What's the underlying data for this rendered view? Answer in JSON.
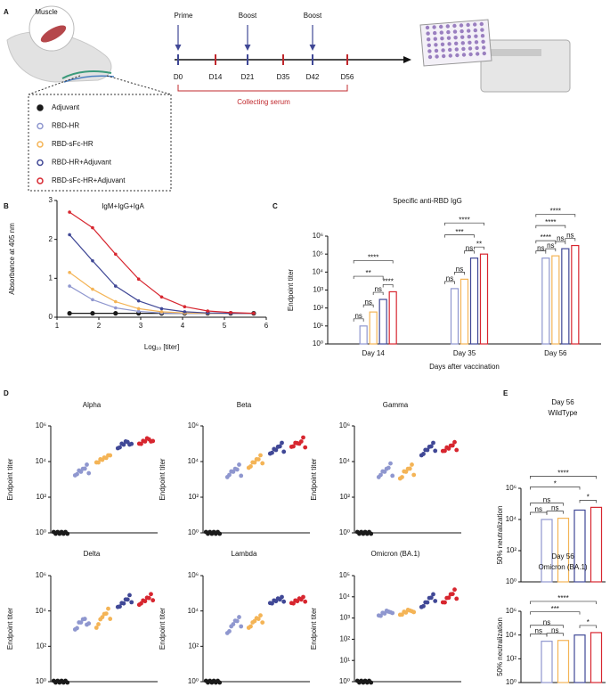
{
  "diagram": {
    "panel": "A",
    "muscle": "Muscle",
    "doses": [
      "Prime",
      "Boost",
      "Boost"
    ],
    "days": [
      "D0",
      "D14",
      "D21",
      "D35",
      "D42",
      "D56"
    ],
    "serum": "Collecting serum",
    "legend": [
      {
        "name": "Adjuvant",
        "color": "#1a1a1a"
      },
      {
        "name": "RBD-HR",
        "color": "#8f97cf"
      },
      {
        "name": "RBD-sFc-HR",
        "color": "#f4b456"
      },
      {
        "name": "RBD-HR+Adjuvant",
        "color": "#404896"
      },
      {
        "name": "RBD-sFc-HR+Adjuvant",
        "color": "#d7262f"
      }
    ]
  },
  "chart_data": [
    {
      "type": "line",
      "panel": "B",
      "title": "IgM+IgG+IgA",
      "ylabel": "Absorbance at 405 nm",
      "xlabel": "Log₁₀ [titer]",
      "x": [
        1.3,
        1.85,
        2.4,
        2.95,
        3.5,
        4.05,
        4.6,
        5.15,
        5.7
      ],
      "xlim": [
        1,
        6
      ],
      "xticks": [
        1,
        2,
        3,
        4,
        5,
        6
      ],
      "ylim": [
        0,
        3
      ],
      "yticks": [
        0,
        1,
        2,
        3
      ],
      "series": [
        {
          "color": "#1a1a1a",
          "values": [
            0.1,
            0.1,
            0.1,
            0.1,
            0.1,
            0.1,
            0.1,
            0.1,
            0.1
          ]
        },
        {
          "color": "#8f97cf",
          "values": [
            0.8,
            0.45,
            0.24,
            0.15,
            0.11,
            0.1,
            0.1,
            0.1,
            0.1
          ]
        },
        {
          "color": "#f4b456",
          "values": [
            1.15,
            0.72,
            0.4,
            0.22,
            0.14,
            0.11,
            0.1,
            0.1,
            0.1
          ]
        },
        {
          "color": "#404896",
          "values": [
            2.12,
            1.45,
            0.8,
            0.42,
            0.22,
            0.14,
            0.11,
            0.1,
            0.1
          ]
        },
        {
          "color": "#d7262f",
          "values": [
            2.7,
            2.3,
            1.62,
            0.98,
            0.52,
            0.27,
            0.16,
            0.12,
            0.1
          ]
        }
      ]
    },
    {
      "type": "bar",
      "panel": "C",
      "title": "Specific anti-RBD IgG",
      "ylabel": "Endpoint titer",
      "xlabel": "Days after vaccination",
      "log_y": true,
      "categories": [
        "Day 14",
        "Day 35",
        "Day 56"
      ],
      "ylim": [
        1,
        1000000
      ],
      "yticks": [
        {
          "value": 1,
          "label": "10⁰"
        },
        {
          "value": 10,
          "label": "10¹"
        },
        {
          "value": 100,
          "label": "10²"
        },
        {
          "value": 1000,
          "label": "10³"
        },
        {
          "value": 10000,
          "label": "10⁴"
        },
        {
          "value": 100000,
          "label": "10⁵"
        },
        {
          "value": 1000000,
          "label": "10⁶"
        }
      ],
      "series": [
        {
          "color": "#1a1a1a",
          "values": [
            1,
            1,
            1
          ]
        },
        {
          "color": "#8f97cf",
          "values": [
            10,
            1200,
            60000
          ]
        },
        {
          "color": "#f4b456",
          "values": [
            60,
            4000,
            80000
          ]
        },
        {
          "color": "#404896",
          "values": [
            300,
            60000,
            200000
          ]
        },
        {
          "color": "#d7262f",
          "values": [
            800,
            100000,
            300000
          ]
        }
      ],
      "comparisons": [
        {
          "category": 0,
          "from": 0,
          "to": 1,
          "label": "ns"
        },
        {
          "category": 0,
          "from": 1,
          "to": 2,
          "label": "ns"
        },
        {
          "category": 0,
          "from": 2,
          "to": 3,
          "label": "ns"
        },
        {
          "category": 0,
          "from": 3,
          "to": 4,
          "label": "****"
        },
        {
          "category": 0,
          "from": 0,
          "to": 3,
          "label": "**"
        },
        {
          "category": 0,
          "from": 0,
          "to": 4,
          "label": "****"
        },
        {
          "category": 1,
          "from": 0,
          "to": 1,
          "label": "ns"
        },
        {
          "category": 1,
          "from": 1,
          "to": 2,
          "label": "ns"
        },
        {
          "category": 1,
          "from": 2,
          "to": 3,
          "label": "ns"
        },
        {
          "category": 1,
          "from": 3,
          "to": 4,
          "label": "**"
        },
        {
          "category": 1,
          "from": 0,
          "to": 3,
          "label": "***"
        },
        {
          "category": 1,
          "from": 0,
          "to": 4,
          "label": "****"
        },
        {
          "category": 2,
          "from": 0,
          "to": 1,
          "label": "ns"
        },
        {
          "category": 2,
          "from": 1,
          "to": 2,
          "label": "ns"
        },
        {
          "category": 2,
          "from": 2,
          "to": 3,
          "label": "ns"
        },
        {
          "category": 2,
          "from": 3,
          "to": 4,
          "label": "ns"
        },
        {
          "category": 2,
          "from": 0,
          "to": 2,
          "label": "****"
        },
        {
          "category": 2,
          "from": 0,
          "to": 3,
          "label": "****"
        },
        {
          "category": 2,
          "from": 0,
          "to": 4,
          "label": "****"
        }
      ]
    },
    {
      "type": "scatter",
      "panel": "D",
      "title": "Alpha",
      "ylabel": "Endpoint titer",
      "log_y": true,
      "ylim": [
        1,
        1000000
      ],
      "yticks": [
        {
          "value": 1,
          "label": "10⁰"
        },
        {
          "value": 100,
          "label": "10²"
        },
        {
          "value": 10000,
          "label": "10⁴"
        },
        {
          "value": 1000000,
          "label": "10⁶"
        }
      ],
      "series": [
        {
          "color": "#1a1a1a",
          "values": [
            1,
            1,
            1,
            1,
            1,
            1,
            1,
            1
          ]
        },
        {
          "color": "#8f97cf",
          "values": [
            1500,
            2200,
            2800,
            3000,
            3500,
            4500,
            6000,
            2500
          ]
        },
        {
          "color": "#f4b456",
          "values": [
            8000,
            10000,
            12000,
            14000,
            15000,
            18000,
            20000,
            25000
          ]
        },
        {
          "color": "#404896",
          "values": [
            50000,
            70000,
            90000,
            100000,
            120000,
            140000,
            80000,
            110000
          ]
        },
        {
          "color": "#d7262f",
          "values": [
            90000,
            110000,
            130000,
            150000,
            180000,
            200000,
            120000,
            160000
          ]
        }
      ]
    },
    {
      "type": "scatter",
      "title": "Beta",
      "ylabel": "Endpoint titer",
      "log_y": true,
      "ylim": [
        1,
        1000000
      ],
      "yticks": [
        {
          "value": 1,
          "label": "10⁰"
        },
        {
          "value": 100,
          "label": "10²"
        },
        {
          "value": 10000,
          "label": "10⁴"
        },
        {
          "value": 1000000,
          "label": "10⁶"
        }
      ],
      "series": [
        {
          "color": "#1a1a1a",
          "values": [
            1,
            1,
            1,
            1,
            1,
            1,
            1,
            1
          ]
        },
        {
          "color": "#8f97cf",
          "values": [
            1200,
            2000,
            2500,
            3000,
            3500,
            4000,
            6000,
            1800
          ]
        },
        {
          "color": "#f4b456",
          "values": [
            4000,
            6000,
            8000,
            10000,
            12000,
            15000,
            20000,
            9000
          ]
        },
        {
          "color": "#404896",
          "values": [
            25000,
            35000,
            45000,
            50000,
            60000,
            80000,
            100000,
            40000
          ]
        },
        {
          "color": "#d7262f",
          "values": [
            60000,
            80000,
            100000,
            120000,
            90000,
            150000,
            200000,
            70000
          ]
        }
      ]
    },
    {
      "type": "scatter",
      "title": "Gamma",
      "ylabel": "Endpoint titer",
      "log_y": true,
      "ylim": [
        1,
        1000000
      ],
      "yticks": [
        {
          "value": 1,
          "label": "10⁰"
        },
        {
          "value": 100,
          "label": "10²"
        },
        {
          "value": 10000,
          "label": "10⁴"
        },
        {
          "value": 1000000,
          "label": "10⁶"
        }
      ],
      "series": [
        {
          "color": "#1a1a1a",
          "values": [
            1,
            1,
            1,
            1,
            1,
            1,
            1,
            1
          ]
        },
        {
          "color": "#8f97cf",
          "values": [
            1200,
            2000,
            2500,
            3000,
            3500,
            5000,
            7000,
            1800
          ]
        },
        {
          "color": "#f4b456",
          "values": [
            1000,
            1500,
            2500,
            3000,
            3500,
            4500,
            6000,
            2000
          ]
        },
        {
          "color": "#404896",
          "values": [
            20000,
            30000,
            40000,
            50000,
            60000,
            80000,
            100000,
            45000
          ]
        },
        {
          "color": "#d7262f",
          "values": [
            35000,
            45000,
            55000,
            60000,
            70000,
            90000,
            110000,
            50000
          ]
        }
      ]
    },
    {
      "type": "scatter",
      "title": "Delta",
      "ylabel": "Endpoint titer",
      "log_y": true,
      "ylim": [
        1,
        1000000
      ],
      "yticks": [
        {
          "value": 1,
          "label": "10⁰"
        },
        {
          "value": 100,
          "label": "10²"
        },
        {
          "value": 10000,
          "label": "10⁴"
        },
        {
          "value": 1000000,
          "label": "10⁶"
        }
      ],
      "series": [
        {
          "color": "#1a1a1a",
          "values": [
            1,
            1,
            1,
            1,
            1,
            1,
            1,
            1
          ]
        },
        {
          "color": "#8f97cf",
          "values": [
            800,
            1200,
            2000,
            2500,
            3000,
            4000,
            1500,
            2200
          ]
        },
        {
          "color": "#f4b456",
          "values": [
            1000,
            2000,
            3000,
            5000,
            6000,
            8000,
            12000,
            4000
          ]
        },
        {
          "color": "#404896",
          "values": [
            15000,
            20000,
            25000,
            30000,
            40000,
            50000,
            70000,
            35000
          ]
        },
        {
          "color": "#d7262f",
          "values": [
            20000,
            30000,
            35000,
            40000,
            50000,
            60000,
            80000,
            45000
          ]
        }
      ]
    },
    {
      "type": "scatter",
      "title": "Lambda",
      "ylabel": "Endpoint titer",
      "log_y": true,
      "ylim": [
        1,
        1000000
      ],
      "yticks": [
        {
          "value": 1,
          "label": "10⁰"
        },
        {
          "value": 100,
          "label": "10²"
        },
        {
          "value": 10000,
          "label": "10⁴"
        },
        {
          "value": 1000000,
          "label": "10⁶"
        }
      ],
      "series": [
        {
          "color": "#1a1a1a",
          "values": [
            1,
            1,
            1,
            1,
            1,
            1,
            1,
            1
          ]
        },
        {
          "color": "#8f97cf",
          "values": [
            500,
            800,
            1200,
            2000,
            2500,
            3000,
            4000,
            1500
          ]
        },
        {
          "color": "#f4b456",
          "values": [
            1000,
            1500,
            2000,
            3000,
            3500,
            4000,
            5000,
            2500
          ]
        },
        {
          "color": "#404896",
          "values": [
            25000,
            30000,
            35000,
            40000,
            45000,
            50000,
            55000,
            38000
          ]
        },
        {
          "color": "#d7262f",
          "values": [
            25000,
            30000,
            35000,
            40000,
            45000,
            50000,
            55000,
            38000
          ]
        }
      ]
    },
    {
      "type": "scatter",
      "title": "Omicron (BA.1)",
      "ylabel": "Endpoint titer",
      "log_y": true,
      "ylim": [
        1,
        100000
      ],
      "yticks": [
        {
          "value": 1,
          "label": "10⁰"
        },
        {
          "value": 10,
          "label": "10¹"
        },
        {
          "value": 100,
          "label": "10²"
        },
        {
          "value": 1000,
          "label": "10³"
        },
        {
          "value": 10000,
          "label": "10⁴"
        },
        {
          "value": 100000,
          "label": "10⁵"
        }
      ],
      "series": [
        {
          "color": "#1a1a1a",
          "values": [
            1,
            1,
            1,
            1,
            1,
            1,
            1,
            1
          ]
        },
        {
          "color": "#8f97cf",
          "values": [
            1200,
            1400,
            1600,
            1800,
            2000,
            2200,
            1700,
            1900
          ]
        },
        {
          "color": "#f4b456",
          "values": [
            1300,
            1600,
            1800,
            2000,
            2200,
            2500,
            1900,
            2100
          ]
        },
        {
          "color": "#404896",
          "values": [
            3000,
            4000,
            5000,
            6000,
            8000,
            10000,
            12000,
            7000
          ]
        },
        {
          "color": "#d7262f",
          "values": [
            5000,
            6000,
            8000,
            10000,
            12000,
            15000,
            20000,
            9000
          ]
        }
      ]
    },
    {
      "type": "bar",
      "panel": "E",
      "title": "Day 56",
      "subtitle": "WildType",
      "ylabel": "50% neutralization",
      "log_y": true,
      "ylim": [
        1,
        1000000
      ],
      "yticks": [
        {
          "value": 1,
          "label": "10⁰"
        },
        {
          "value": 100,
          "label": "10²"
        },
        {
          "value": 10000,
          "label": "10⁴"
        },
        {
          "value": 1000000,
          "label": "10⁶"
        }
      ],
      "values": [
        1,
        10000,
        12000,
        40000,
        60000
      ],
      "colors": [
        "#1a1a1a",
        "#8f97cf",
        "#f4b456",
        "#404896",
        "#d7262f"
      ],
      "comparisons": [
        {
          "from": 0,
          "to": 1,
          "label": "ns"
        },
        {
          "from": 1,
          "to": 2,
          "label": "ns"
        },
        {
          "from": 0,
          "to": 2,
          "label": "ns"
        },
        {
          "from": 3,
          "to": 4,
          "label": "*"
        },
        {
          "from": 0,
          "to": 3,
          "label": "*"
        },
        {
          "from": 0,
          "to": 4,
          "label": "****"
        }
      ]
    },
    {
      "type": "bar",
      "title": "Day 56",
      "subtitle": "Omicron (BA.1)",
      "ylabel": "50% neutralization",
      "log_y": true,
      "ylim": [
        1,
        1000000
      ],
      "yticks": [
        {
          "value": 1,
          "label": "10⁰"
        },
        {
          "value": 100,
          "label": "10²"
        },
        {
          "value": 10000,
          "label": "10⁴"
        },
        {
          "value": 1000000,
          "label": "10⁶"
        }
      ],
      "values": [
        1,
        3000,
        3500,
        10000,
        16000
      ],
      "colors": [
        "#1a1a1a",
        "#8f97cf",
        "#f4b456",
        "#404896",
        "#d7262f"
      ],
      "comparisons": [
        {
          "from": 0,
          "to": 1,
          "label": "ns"
        },
        {
          "from": 1,
          "to": 2,
          "label": "ns"
        },
        {
          "from": 0,
          "to": 2,
          "label": "ns"
        },
        {
          "from": 3,
          "to": 4,
          "label": "*"
        },
        {
          "from": 0,
          "to": 3,
          "label": "***"
        },
        {
          "from": 0,
          "to": 4,
          "label": "****"
        }
      ]
    }
  ]
}
